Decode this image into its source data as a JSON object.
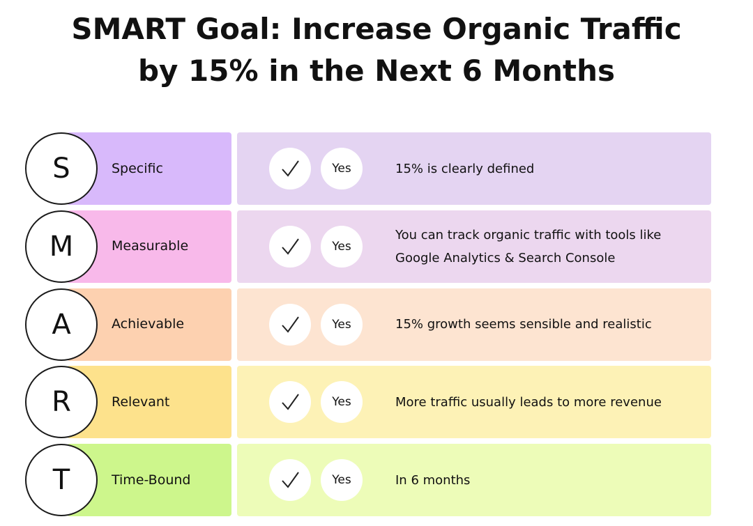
{
  "title": "SMART Goal: Increase Organic Traffic by 15% in the Next 6 Months",
  "rows": [
    {
      "letter": "S",
      "label": "Specific",
      "answer": "Yes",
      "description": "15% is clearly defined",
      "color": "#d8b9fb",
      "light": "#e4d4f2"
    },
    {
      "letter": "M",
      "label": "Measurable",
      "answer": "Yes",
      "description": "You can track organic traffic with tools like Google Analytics & Search Console",
      "color": "#f8b9ea",
      "light": "#ecd7ef"
    },
    {
      "letter": "A",
      "label": "Achievable",
      "answer": "Yes",
      "description": "15% growth seems sensible and realistic",
      "color": "#fdd1b0",
      "light": "#fde4d1"
    },
    {
      "letter": "R",
      "label": "Relevant",
      "answer": "Yes",
      "description": "More traffic usually leads to more revenue",
      "color": "#fde28c",
      "light": "#fdf2b6"
    },
    {
      "letter": "T",
      "label": "Time-Bound",
      "answer": "Yes",
      "description": "In 6 months",
      "color": "#cdf68c",
      "light": "#edfcb8"
    }
  ]
}
